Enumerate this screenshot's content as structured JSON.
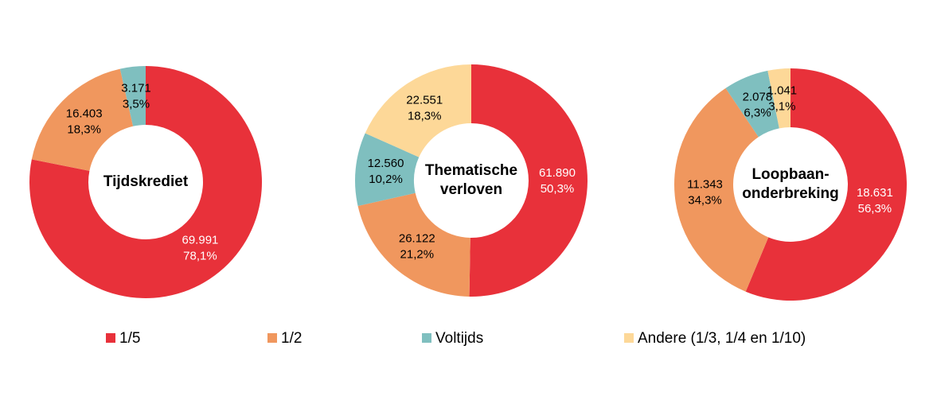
{
  "chart_data": [
    {
      "type": "donut",
      "title": [
        "Tijdskrediet"
      ],
      "values": [
        69991,
        16403,
        3171
      ],
      "value_labels": [
        "69.991",
        "16.403",
        "3.171"
      ],
      "percent_labels": [
        "78,1%",
        "18,3%",
        "3,5%"
      ],
      "colors": [
        "#e8313a",
        "#f0975e",
        "#7fbfbf"
      ]
    },
    {
      "type": "donut",
      "title": [
        "Thematische",
        "verloven"
      ],
      "values": [
        61890,
        26122,
        12560,
        22551
      ],
      "value_labels": [
        "61.890",
        "26.122",
        "12.560",
        "22.551"
      ],
      "percent_labels": [
        "50,3%",
        "21,2%",
        "10,2%",
        "18,3%"
      ],
      "colors": [
        "#e8313a",
        "#f0975e",
        "#7fbfbf",
        "#fdd898"
      ]
    },
    {
      "type": "donut",
      "title": [
        "Loopbaan-",
        "onderbreking"
      ],
      "values": [
        18631,
        11343,
        2078,
        1041
      ],
      "value_labels": [
        "18.631",
        "11.343",
        "2.078",
        "1.041"
      ],
      "percent_labels": [
        "56,3%",
        "34,3%",
        "6,3%",
        "3,1%"
      ],
      "colors": [
        "#e8313a",
        "#f0975e",
        "#7fbfbf",
        "#fdd898"
      ]
    }
  ],
  "legend": [
    {
      "name": "1/5",
      "color": "#e8313a"
    },
    {
      "name": "1/2",
      "color": "#f0975e"
    },
    {
      "name": "Voltijds",
      "color": "#7fbfbf"
    },
    {
      "name": "Andere (1/3, 1/4 en 1/10)",
      "color": "#fdd898"
    }
  ]
}
